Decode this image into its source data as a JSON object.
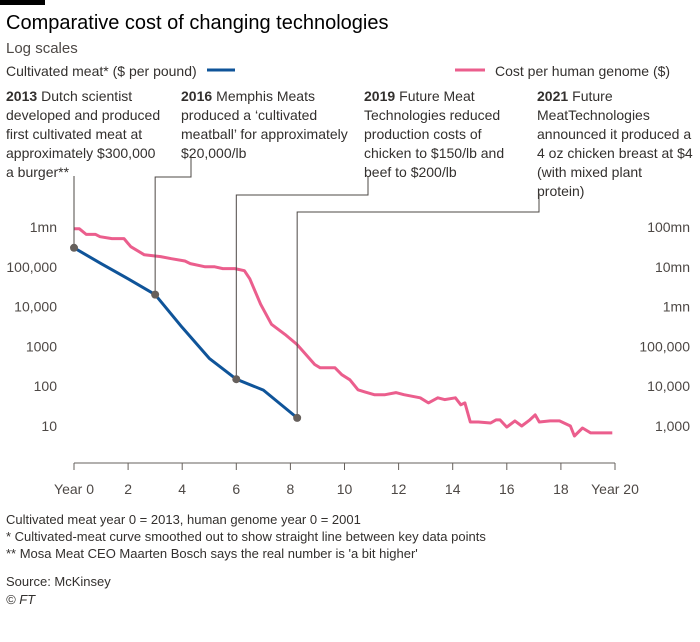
{
  "chart_data": {
    "type": "line",
    "title": "Comparative cost of changing technologies",
    "subtitle": "Log scales",
    "log_scale": true,
    "grid": false,
    "xlim": [
      0,
      20
    ],
    "xticks": [
      {
        "value": 0,
        "label": "Year 0"
      },
      2,
      4,
      6,
      8,
      10,
      12,
      14,
      16,
      18,
      {
        "value": 20,
        "label": "Year 20"
      }
    ],
    "ylim": [
      1,
      1000000
    ],
    "yticks": [
      {
        "value": 1000000,
        "label": "1mn"
      },
      {
        "value": 100000,
        "label": "100,000"
      },
      {
        "value": 10000,
        "label": "10,000"
      },
      1000,
      100,
      10
    ],
    "y2lim": [
      100,
      100000000
    ],
    "y2ticks": [
      {
        "value": 100000000,
        "label": "100mn"
      },
      {
        "value": 10000000,
        "label": "10mn"
      },
      {
        "value": 1000000,
        "label": "1mn"
      },
      {
        "value": 100000,
        "label": "100,000"
      },
      {
        "value": 10000,
        "label": "10,000"
      },
      {
        "value": 1000,
        "label": "1,000"
      }
    ],
    "series": [
      {
        "name": "Cultivated meat* ($ per pound)",
        "color": "#0f5499",
        "axis": "y",
        "x": [
          0,
          1,
          2,
          3,
          4,
          5,
          6,
          7,
          8.25
        ],
        "values": [
          300000,
          120000,
          50000,
          20000,
          3000,
          500,
          150,
          80,
          16
        ]
      },
      {
        "name": "Cost per human genome ($)",
        "color": "#eb5e8d",
        "axis": "y2",
        "x": [
          0,
          0.2,
          0.45,
          0.8,
          0.96,
          1.4,
          1.85,
          2.1,
          2.6,
          3.2,
          3.6,
          4.1,
          4.3,
          4.85,
          5.2,
          5.5,
          5.95,
          6.3,
          6.5,
          6.9,
          7.3,
          7.8,
          8.24,
          8.5,
          8.9,
          9.1,
          9.65,
          9.9,
          10.2,
          10.5,
          10.75,
          11.1,
          11.5,
          11.9,
          12.2,
          12.8,
          13.1,
          13.45,
          13.7,
          14.1,
          14.3,
          14.45,
          14.65,
          14.95,
          15.4,
          15.6,
          15.75,
          16,
          16.3,
          16.55,
          16.85,
          17.05,
          17.2,
          17.6,
          17.95,
          18.35,
          18.5,
          18.8,
          19.1,
          19.45,
          19.9
        ],
        "values": [
          90000000,
          90000000,
          65000000,
          65000000,
          57000000,
          51000000,
          51000000,
          32000000,
          20000000,
          18000000,
          16000000,
          14000000,
          12000000,
          10000000,
          10000000,
          9000000,
          9000000,
          8000000,
          5000000,
          1150000,
          360000,
          200000,
          112000,
          71000,
          35000,
          29000,
          29000,
          19500,
          14500,
          8100,
          7200,
          6100,
          6100,
          6900,
          6100,
          5100,
          3800,
          5100,
          4600,
          5100,
          3400,
          3800,
          1260,
          1260,
          1190,
          1420,
          1420,
          940,
          1340,
          1000,
          1420,
          1900,
          1260,
          1340,
          1340,
          1000,
          560,
          890,
          670,
          670,
          670
        ]
      }
    ],
    "annotations": [
      {
        "year": "2013",
        "lines": [
          "Dutch scientist",
          "developed and produced",
          "first cultivated meat at",
          "approximately $300,000",
          "a burger**"
        ],
        "x": 0,
        "value": 300000
      },
      {
        "year": "2016",
        "lines": [
          "Memphis Meats",
          "produced a ‘cultivated",
          "meatball’ for approximately",
          "$20,000/lb"
        ],
        "x": 3,
        "value": 20000
      },
      {
        "year": "2019",
        "lines": [
          "Future Meat",
          "Technologies reduced",
          "production costs of",
          "chicken to $150/lb and",
          "beef to $200/lb"
        ],
        "x": 6,
        "value": 150
      },
      {
        "year": "2021",
        "lines": [
          "Future",
          "MeatTechnologies",
          "announced it produced a",
          "4 oz chicken breast at $4",
          "(with mixed plant",
          "protein)"
        ],
        "x": 8.25,
        "value": 16
      }
    ],
    "notes": [
      "Cultivated meat year 0 = 2013, human genome year 0 = 2001",
      "* Cultivated-meat curve smoothed out to show straight line between key data points",
      "** Mosa Meat CEO Maarten Bosch says the real number is 'a bit higher'"
    ],
    "source": "Source: McKinsey",
    "credit": "© FT"
  }
}
